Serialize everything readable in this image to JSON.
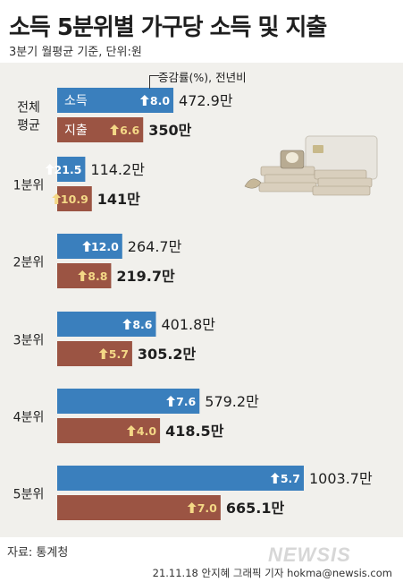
{
  "title": "소득 5분위별 가구당 소득 및 지출",
  "subtitle": "3분기 월평균 기준, 단위:원",
  "legend_note": "증감률(%), 전년비",
  "source": "자료: 통계청",
  "credit": "21.11.18 안지혜 그래픽 기자 hokma@newsis.com",
  "watermark": "NEWSIS",
  "colors": {
    "income": "#3a7fbd",
    "expense": "#9b5443",
    "up_white": "#ffffff",
    "up_yellow": "#f4d886"
  },
  "chart_data": {
    "type": "bar",
    "orientation": "horizontal",
    "categories": [
      "전체 평균",
      "1분위",
      "2분위",
      "3분위",
      "4분위",
      "5분위"
    ],
    "series": [
      {
        "name": "소득",
        "values": [
          472.9,
          114.2,
          264.7,
          401.8,
          579.2,
          1003.7
        ],
        "value_labels": [
          "472.9만",
          "114.2만",
          "264.7만",
          "401.8만",
          "579.2만",
          "1003.7만"
        ],
        "change": [
          "8.0",
          "21.5",
          "12.0",
          "8.6",
          "7.6",
          "5.7"
        ]
      },
      {
        "name": "지출",
        "values": [
          350,
          141,
          219.7,
          305.2,
          418.5,
          665.1
        ],
        "value_labels": [
          "350만",
          "141만",
          "219.7만",
          "305.2만",
          "418.5만",
          "665.1만"
        ],
        "change": [
          "6.6",
          "10.9",
          "8.8",
          "5.7",
          "4.0",
          "7.0"
        ]
      }
    ],
    "category_display": [
      [
        "전체",
        "평균"
      ],
      [
        "1분위"
      ],
      [
        "2분위"
      ],
      [
        "3분위"
      ],
      [
        "4분위"
      ],
      [
        "5분위"
      ]
    ],
    "unit": "만원"
  }
}
